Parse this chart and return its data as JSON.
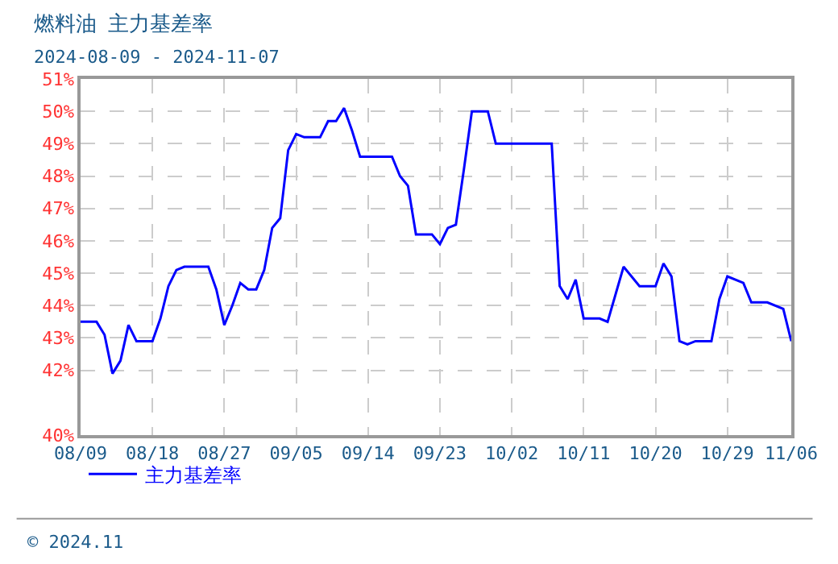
{
  "chart_data": {
    "type": "line",
    "title": "燃料油  主力基差率",
    "subtitle": "2024-08-09 - 2024-11-07",
    "x": [
      "2024-08-09",
      "2024-08-11",
      "2024-08-12",
      "2024-08-13",
      "2024-08-14",
      "2024-08-15",
      "2024-08-16",
      "2024-08-18",
      "2024-08-19",
      "2024-08-20",
      "2024-08-21",
      "2024-08-22",
      "2024-08-25",
      "2024-08-26",
      "2024-08-27",
      "2024-08-28",
      "2024-08-29",
      "2024-08-30",
      "2024-08-31",
      "2024-09-01",
      "2024-09-02",
      "2024-09-03",
      "2024-09-04",
      "2024-09-05",
      "2024-09-06",
      "2024-09-08",
      "2024-09-09",
      "2024-09-10",
      "2024-09-11",
      "2024-09-12",
      "2024-09-13",
      "2024-09-17",
      "2024-09-18",
      "2024-09-19",
      "2024-09-20",
      "2024-09-22",
      "2024-09-23",
      "2024-09-24",
      "2024-09-25",
      "2024-09-26",
      "2024-09-27",
      "2024-09-29",
      "2024-09-30",
      "2024-10-07",
      "2024-10-08",
      "2024-10-09",
      "2024-10-10",
      "2024-10-11",
      "2024-10-13",
      "2024-10-14",
      "2024-10-16",
      "2024-10-18",
      "2024-10-20",
      "2024-10-21",
      "2024-10-22",
      "2024-10-23",
      "2024-10-24",
      "2024-10-25",
      "2024-10-27",
      "2024-10-28",
      "2024-10-29",
      "2024-10-31",
      "2024-11-01",
      "2024-11-03",
      "2024-11-05",
      "2024-11-06"
    ],
    "series": [
      {
        "name": "主力基差率",
        "color": "#0000ff",
        "values": [
          43.5,
          43.5,
          43.1,
          41.9,
          42.3,
          43.4,
          42.9,
          42.9,
          43.6,
          44.6,
          45.1,
          45.2,
          45.2,
          44.5,
          43.4,
          44.0,
          44.7,
          44.5,
          44.5,
          45.1,
          46.4,
          46.7,
          48.8,
          49.3,
          49.2,
          49.2,
          49.7,
          49.7,
          50.1,
          49.4,
          48.6,
          48.6,
          48.0,
          47.7,
          46.2,
          46.2,
          45.9,
          46.4,
          46.5,
          48.2,
          50.0,
          50.0,
          49.0,
          49.0,
          44.6,
          44.2,
          44.8,
          43.6,
          43.6,
          43.5,
          45.2,
          44.6,
          44.6,
          45.3,
          44.9,
          42.9,
          42.8,
          42.9,
          42.9,
          44.2,
          44.9,
          44.7,
          44.1,
          44.1,
          43.9,
          42.9
        ]
      }
    ],
    "xlim": [
      "2024-08-09",
      "2024-11-06"
    ],
    "xticks": [
      {
        "value": "2024-08-09",
        "label": "08/09"
      },
      {
        "value": "2024-08-18",
        "label": "08/18"
      },
      {
        "value": "2024-08-27",
        "label": "08/27"
      },
      {
        "value": "2024-09-05",
        "label": "09/05"
      },
      {
        "value": "2024-09-14",
        "label": "09/14"
      },
      {
        "value": "2024-09-23",
        "label": "09/23"
      },
      {
        "value": "2024-10-02",
        "label": "10/02"
      },
      {
        "value": "2024-10-11",
        "label": "10/11"
      },
      {
        "value": "2024-10-20",
        "label": "10/20"
      },
      {
        "value": "2024-10-29",
        "label": "10/29"
      },
      {
        "value": "2024-11-06",
        "label": "11/06"
      }
    ],
    "ylim": [
      40,
      51
    ],
    "yticks": [
      {
        "value": 40,
        "label": "40%"
      },
      {
        "value": 42,
        "label": "42%"
      },
      {
        "value": 43,
        "label": "43%"
      },
      {
        "value": 44,
        "label": "44%"
      },
      {
        "value": 45,
        "label": "45%"
      },
      {
        "value": 46,
        "label": "46%"
      },
      {
        "value": 47,
        "label": "47%"
      },
      {
        "value": 48,
        "label": "48%"
      },
      {
        "value": 49,
        "label": "49%"
      },
      {
        "value": 50,
        "label": "50%"
      },
      {
        "value": 51,
        "label": "51%"
      }
    ],
    "grid": true,
    "legend": "bottom left",
    "line_style": "solid",
    "marker": "none",
    "annotations": [
      "© 2024.11"
    ]
  }
}
